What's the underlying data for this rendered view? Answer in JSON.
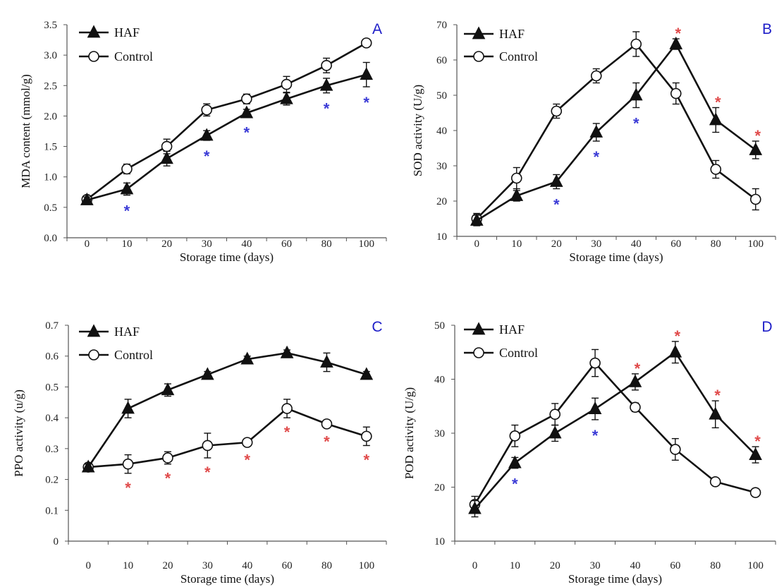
{
  "colors": {
    "line": "#111111",
    "star_blue": "#3b3bd6",
    "star_red": "#e04a4a",
    "panel_letter": "#1e1ec8"
  },
  "legend": {
    "haf": "HAF",
    "control": "Control"
  },
  "chart_data": [
    {
      "type": "line",
      "panel": "A",
      "categories": [
        "0",
        "10",
        "20",
        "30",
        "40",
        "60",
        "80",
        "100"
      ],
      "xlabel": "Storage time (days)",
      "ylabel": "MDA content (mmol/g)",
      "ylim": [
        0,
        3.5
      ],
      "yticks": [
        "0.0",
        "0.5",
        "1.0",
        "1.5",
        "2.0",
        "2.5",
        "3.0",
        "3.5"
      ],
      "legend_position": "top-left",
      "series": [
        {
          "name": "HAF",
          "marker": "filled-triangle",
          "values": [
            0.62,
            0.8,
            1.3,
            1.68,
            2.05,
            2.28,
            2.5,
            2.68
          ],
          "errors": [
            0.05,
            0.1,
            0.12,
            0.08,
            0.06,
            0.1,
            0.12,
            0.2
          ]
        },
        {
          "name": "Control",
          "marker": "open-circle",
          "values": [
            0.63,
            1.13,
            1.5,
            2.1,
            2.28,
            2.52,
            2.83,
            3.2
          ],
          "errors": [
            0.05,
            0.08,
            0.12,
            0.1,
            0.08,
            0.13,
            0.12,
            0.05
          ]
        }
      ],
      "significance": [
        {
          "category": "10",
          "color": "blue"
        },
        {
          "category": "30",
          "color": "blue"
        },
        {
          "category": "40",
          "color": "blue"
        },
        {
          "category": "80",
          "color": "blue"
        },
        {
          "category": "100",
          "color": "blue"
        }
      ]
    },
    {
      "type": "line",
      "panel": "B",
      "categories": [
        "0",
        "10",
        "20",
        "30",
        "40",
        "60",
        "80",
        "100"
      ],
      "xlabel": "Storage time (days)",
      "ylabel": "SOD activity (U/g)",
      "ylim": [
        10,
        70
      ],
      "yticks": [
        "10",
        "20",
        "30",
        "40",
        "50",
        "60",
        "70"
      ],
      "legend_position": "top-left",
      "series": [
        {
          "name": "HAF",
          "marker": "filled-triangle",
          "values": [
            14.5,
            21.5,
            25.5,
            39.5,
            50.0,
            64.5,
            43.0,
            34.5
          ],
          "errors": [
            1.5,
            1.5,
            2.0,
            2.5,
            3.5,
            1.5,
            3.5,
            2.5
          ]
        },
        {
          "name": "Control",
          "marker": "open-circle",
          "values": [
            15.0,
            26.5,
            45.5,
            55.5,
            64.5,
            50.5,
            29.0,
            20.5
          ],
          "errors": [
            1.5,
            3.0,
            2.0,
            2.0,
            3.5,
            3.0,
            2.5,
            3.0
          ]
        }
      ],
      "significance": [
        {
          "category": "20",
          "color": "blue"
        },
        {
          "category": "30",
          "color": "blue"
        },
        {
          "category": "40",
          "color": "blue"
        },
        {
          "category": "60",
          "color": "red"
        },
        {
          "category": "80",
          "color": "red"
        },
        {
          "category": "100",
          "color": "red"
        }
      ]
    },
    {
      "type": "line",
      "panel": "C",
      "categories": [
        "0",
        "10",
        "20",
        "30",
        "40",
        "60",
        "80",
        "100"
      ],
      "xlabel": "Storage time (days)",
      "ylabel": "PPO activity (u/g)",
      "ylim": [
        0,
        0.7
      ],
      "yticks": [
        "0",
        "0.1",
        "0.2",
        "0.3",
        "0.4",
        "0.5",
        "0.6",
        "0.7"
      ],
      "legend_position": "top-left",
      "series": [
        {
          "name": "HAF",
          "marker": "filled-triangle",
          "values": [
            0.24,
            0.43,
            0.49,
            0.54,
            0.59,
            0.61,
            0.58,
            0.54
          ],
          "errors": [
            0.01,
            0.03,
            0.02,
            0.01,
            0.01,
            0.01,
            0.03,
            0.01
          ]
        },
        {
          "name": "Control",
          "marker": "open-circle",
          "values": [
            0.24,
            0.25,
            0.27,
            0.31,
            0.32,
            0.43,
            0.38,
            0.34
          ],
          "errors": [
            0.01,
            0.03,
            0.02,
            0.04,
            0.01,
            0.03,
            0.01,
            0.03
          ]
        }
      ],
      "significance": [
        {
          "category": "10",
          "color": "red"
        },
        {
          "category": "20",
          "color": "red"
        },
        {
          "category": "30",
          "color": "red"
        },
        {
          "category": "40",
          "color": "red"
        },
        {
          "category": "60",
          "color": "red"
        },
        {
          "category": "80",
          "color": "red"
        },
        {
          "category": "100",
          "color": "red"
        }
      ]
    },
    {
      "type": "line",
      "panel": "D",
      "categories": [
        "0",
        "10",
        "20",
        "30",
        "40",
        "60",
        "80",
        "100"
      ],
      "xlabel": "Storage time (days)",
      "ylabel": "POD activity (U/g)",
      "ylim": [
        10,
        50
      ],
      "yticks": [
        "10",
        "20",
        "30",
        "40",
        "50"
      ],
      "legend_position": "top-left",
      "series": [
        {
          "name": "HAF",
          "marker": "filled-triangle",
          "values": [
            16.0,
            24.5,
            30.0,
            34.5,
            39.5,
            45.0,
            33.5,
            26.0
          ],
          "errors": [
            1.5,
            1.0,
            1.5,
            2.0,
            1.5,
            2.0,
            2.5,
            1.5
          ]
        },
        {
          "name": "Control",
          "marker": "open-circle",
          "values": [
            16.8,
            29.5,
            33.5,
            43.0,
            34.8,
            27.0,
            21.0,
            19.0
          ],
          "errors": [
            1.5,
            2.0,
            2.0,
            2.5,
            0.8,
            2.0,
            0.5,
            0.5
          ]
        }
      ],
      "significance": [
        {
          "category": "10",
          "color": "blue"
        },
        {
          "category": "30",
          "color": "blue"
        },
        {
          "category": "40",
          "color": "red"
        },
        {
          "category": "60",
          "color": "red"
        },
        {
          "category": "80",
          "color": "red"
        },
        {
          "category": "100",
          "color": "red"
        }
      ]
    }
  ]
}
